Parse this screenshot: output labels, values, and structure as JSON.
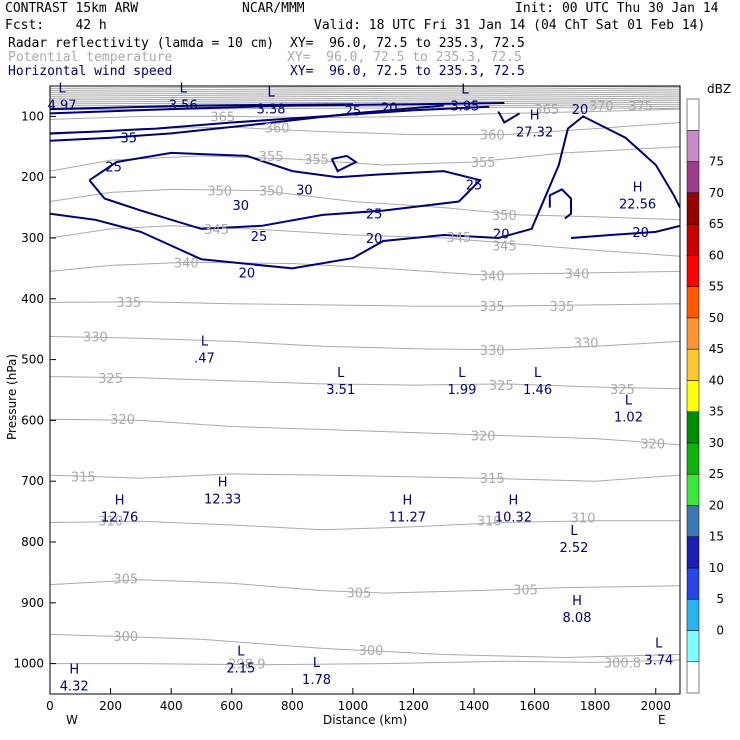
{
  "header": {
    "model": "CONTRAST 15km ARW",
    "org": "NCAR/MMM",
    "init": "Init: 00 UTC Thu 30 Jan 14",
    "fcst": "Fcst:    42 h",
    "valid": "Valid: 18 UTC Fri 31 Jan 14 (04 ChT Sat 01 Feb 14)",
    "fields": [
      {
        "name": "Radar reflectivity (lamda = 10 cm)",
        "xy": "XY=  96.0, 72.5 to 235.3, 72.5",
        "color": "#000000"
      },
      {
        "name": "Potential temperature",
        "xy": "XY=  96.0, 72.5 to 235.3, 72.5",
        "color": "#aaaaaa"
      },
      {
        "name": "Horizontal wind speed",
        "xy": "XY=  96.0, 72.5 to 235.3, 72.5",
        "color": "#000070"
      }
    ]
  },
  "chart_data": {
    "type": "cross-section contour",
    "xlabel": "Distance (km)",
    "ylabel": "Pressure (hPa)",
    "xlim": [
      0,
      2080
    ],
    "ylim": [
      1050,
      50
    ],
    "x_ticks": [
      0,
      200,
      400,
      600,
      800,
      1000,
      1200,
      1400,
      1600,
      1800,
      2000
    ],
    "y_ticks": [
      100,
      200,
      300,
      400,
      500,
      600,
      700,
      800,
      900,
      1000
    ],
    "x_end_labels": {
      "left": "W",
      "right": "E"
    },
    "colorbar": {
      "unit": "dBZ",
      "levels": [
        0,
        5,
        10,
        15,
        20,
        25,
        30,
        35,
        40,
        45,
        50,
        55,
        60,
        65,
        70,
        75
      ],
      "colors": [
        "#ffffff",
        "#7fffff",
        "#28b4f0",
        "#2846e6",
        "#1e1eb4",
        "#3c78b4",
        "#3ce63c",
        "#0ab40a",
        "#008c00",
        "#ffff00",
        "#ffc832",
        "#ff9632",
        "#ff5a00",
        "#ff0000",
        "#c80000",
        "#960000",
        "#a03c8c",
        "#c88cc8",
        "#ffffff"
      ]
    },
    "theta_labels": [
      {
        "v": "375",
        "x": 1950,
        "p": 82
      },
      {
        "v": "370",
        "x": 1820,
        "p": 82
      },
      {
        "v": "365",
        "x": 1640,
        "p": 88
      },
      {
        "v": "365",
        "x": 570,
        "p": 100
      },
      {
        "v": "360",
        "x": 750,
        "p": 118
      },
      {
        "v": "360",
        "x": 1460,
        "p": 130
      },
      {
        "v": "355",
        "x": 730,
        "p": 165
      },
      {
        "v": "355",
        "x": 880,
        "p": 170
      },
      {
        "v": "355",
        "x": 1430,
        "p": 175
      },
      {
        "v": "350",
        "x": 560,
        "p": 222
      },
      {
        "v": "350",
        "x": 730,
        "p": 222
      },
      {
        "v": "350",
        "x": 1500,
        "p": 262
      },
      {
        "v": "345",
        "x": 550,
        "p": 285
      },
      {
        "v": "345",
        "x": 1350,
        "p": 298
      },
      {
        "v": "345",
        "x": 1500,
        "p": 312
      },
      {
        "v": "340",
        "x": 450,
        "p": 340
      },
      {
        "v": "340",
        "x": 1460,
        "p": 362
      },
      {
        "v": "340",
        "x": 1740,
        "p": 358
      },
      {
        "v": "335",
        "x": 260,
        "p": 405
      },
      {
        "v": "335",
        "x": 1460,
        "p": 412
      },
      {
        "v": "335",
        "x": 1690,
        "p": 412
      },
      {
        "v": "330",
        "x": 150,
        "p": 462
      },
      {
        "v": "330",
        "x": 1460,
        "p": 484
      },
      {
        "v": "330",
        "x": 1770,
        "p": 472
      },
      {
        "v": "325",
        "x": 200,
        "p": 530
      },
      {
        "v": "325",
        "x": 1490,
        "p": 542
      },
      {
        "v": "325",
        "x": 1890,
        "p": 548
      },
      {
        "v": "320",
        "x": 240,
        "p": 598
      },
      {
        "v": "320",
        "x": 1430,
        "p": 625
      },
      {
        "v": "320",
        "x": 1990,
        "p": 638
      },
      {
        "v": "315",
        "x": 110,
        "p": 692
      },
      {
        "v": "315",
        "x": 1460,
        "p": 695
      },
      {
        "v": "310",
        "x": 200,
        "p": 765
      },
      {
        "v": "310",
        "x": 1450,
        "p": 765
      },
      {
        "v": "310",
        "x": 1760,
        "p": 760
      },
      {
        "v": "305",
        "x": 250,
        "p": 860
      },
      {
        "v": "305",
        "x": 1020,
        "p": 883
      },
      {
        "v": "305",
        "x": 1570,
        "p": 878
      },
      {
        "v": "300",
        "x": 250,
        "p": 955
      },
      {
        "v": "300",
        "x": 1060,
        "p": 978
      },
      {
        "v": "298.9",
        "x": 650,
        "p": 1000
      },
      {
        "v": "300.8",
        "x": 1890,
        "p": 998
      }
    ],
    "wind_labels": [
      {
        "v": "35",
        "x": 260,
        "p": 135
      },
      {
        "v": "25",
        "x": 210,
        "p": 182
      },
      {
        "v": "30",
        "x": 630,
        "p": 246
      },
      {
        "v": "30",
        "x": 840,
        "p": 220
      },
      {
        "v": "25",
        "x": 690,
        "p": 297
      },
      {
        "v": "25",
        "x": 1070,
        "p": 260
      },
      {
        "v": "25",
        "x": 1400,
        "p": 212
      },
      {
        "v": "25",
        "x": 1000,
        "p": 90
      },
      {
        "v": "20",
        "x": 1120,
        "p": 85
      },
      {
        "v": "20",
        "x": 1070,
        "p": 300
      },
      {
        "v": "20",
        "x": 650,
        "p": 357
      },
      {
        "v": "20",
        "x": 1490,
        "p": 293
      },
      {
        "v": "20",
        "x": 1750,
        "p": 88
      },
      {
        "v": "20",
        "x": 1950,
        "p": 290
      }
    ],
    "extrema": [
      {
        "type": "L",
        "value": "4.97",
        "x": 40,
        "p": 72
      },
      {
        "type": "L",
        "value": "3.56",
        "x": 440,
        "p": 72
      },
      {
        "type": "L",
        "value": "3.38",
        "x": 730,
        "p": 79
      },
      {
        "type": "L",
        "value": "3.95",
        "x": 1370,
        "p": 74
      },
      {
        "type": "H",
        "value": "27.32",
        "x": 1600,
        "p": 117
      },
      {
        "type": "H",
        "value": "22.56",
        "x": 1940,
        "p": 235
      },
      {
        "type": "L",
        "value": ".47",
        "x": 510,
        "p": 488
      },
      {
        "type": "L",
        "value": "3.51",
        "x": 960,
        "p": 540
      },
      {
        "type": "L",
        "value": "1.99",
        "x": 1360,
        "p": 540
      },
      {
        "type": "L",
        "value": "1.46",
        "x": 1610,
        "p": 540
      },
      {
        "type": "L",
        "value": "1.02",
        "x": 1910,
        "p": 585
      },
      {
        "type": "H",
        "value": "12.33",
        "x": 570,
        "p": 720
      },
      {
        "type": "H",
        "value": "12.76",
        "x": 230,
        "p": 750
      },
      {
        "type": "H",
        "value": "11.27",
        "x": 1180,
        "p": 750
      },
      {
        "type": "H",
        "value": "10.32",
        "x": 1530,
        "p": 750
      },
      {
        "type": "L",
        "value": "2.52",
        "x": 1730,
        "p": 800
      },
      {
        "type": "H",
        "value": "8.08",
        "x": 1740,
        "p": 915
      },
      {
        "type": "L",
        "value": "3.74",
        "x": 2010,
        "p": 985
      },
      {
        "type": "L",
        "value": "2.15",
        "x": 630,
        "p": 998
      },
      {
        "type": "L",
        "value": "1.78",
        "x": 880,
        "p": 1017
      },
      {
        "type": "H",
        "value": "4.32",
        "x": 80,
        "p": 1028
      }
    ]
  }
}
